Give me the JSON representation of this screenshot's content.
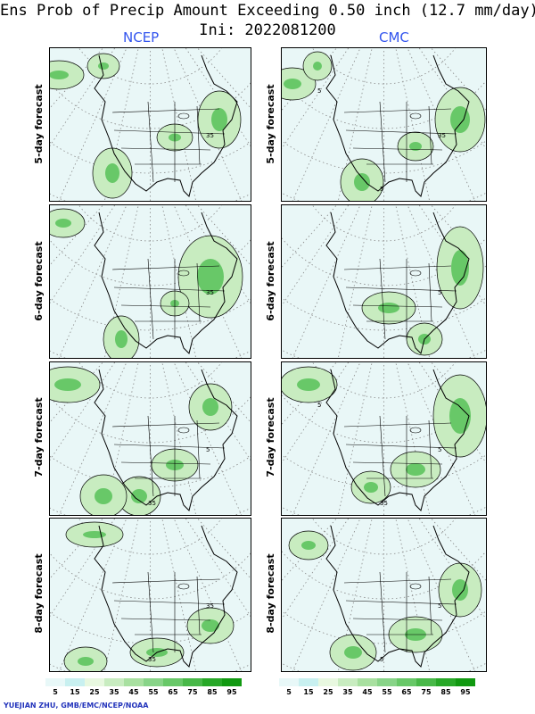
{
  "header": {
    "title": "Ens Prob of Precip Amount Exceeding 0.50 inch (12.7 mm/day)",
    "init": "Ini: 2022081200"
  },
  "columns": [
    {
      "label": "NCEP"
    },
    {
      "label": "CMC"
    }
  ],
  "rows": [
    {
      "label": "5-day forecast"
    },
    {
      "label": "6-day forecast"
    },
    {
      "label": "7-day forecast"
    },
    {
      "label": "8-day forecast"
    }
  ],
  "contour_labels": {
    "ncep_5": [
      "35"
    ],
    "cmc_5": [
      "35",
      "5",
      "5"
    ],
    "ncep_6": [
      "35"
    ],
    "cmc_6": [
      "5"
    ],
    "ncep_7": [
      "5",
      "35"
    ],
    "cmc_7": [
      "5",
      "35",
      "5"
    ],
    "ncep_8": [
      "35",
      "35"
    ],
    "cmc_8": [
      "5",
      "5"
    ]
  },
  "legend": {
    "labels": [
      "5",
      "15",
      "25",
      "35",
      "45",
      "55",
      "65",
      "75",
      "85",
      "95"
    ],
    "colors": [
      "#e8f8f8",
      "#c8f0f0",
      "#e8f8e0",
      "#c8ecc0",
      "#a8e0a0",
      "#88d488",
      "#68c868",
      "#48b848",
      "#28a828",
      "#119911"
    ]
  },
  "credit": "YUEJIAN ZHU, GMB/EMC/NCEP/NOAA"
}
